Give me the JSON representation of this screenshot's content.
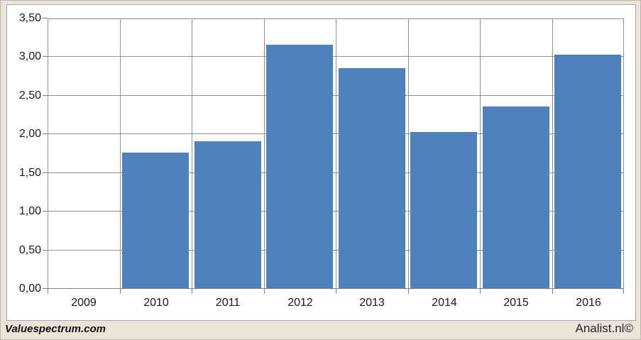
{
  "page": {
    "background_color": "#E9E6D9"
  },
  "footer": {
    "left_text": "Valuespectrum.com",
    "right_text": "Analist.nl©"
  },
  "colors": {
    "bar": "#4F81BD",
    "gridline": "#8F8F8F",
    "axis": "#7F7F7F",
    "plot_background": "#FFFFFF",
    "frame_border": "#A6A6A6",
    "text": "#1A1A1A"
  },
  "chart_data": {
    "type": "bar",
    "title": "",
    "xlabel": "",
    "ylabel": "",
    "categories": [
      "2009",
      "2010",
      "2011",
      "2012",
      "2013",
      "2014",
      "2015",
      "2016"
    ],
    "values": [
      0,
      1.75,
      1.9,
      3.15,
      2.85,
      2.02,
      2.35,
      3.02
    ],
    "ylim": [
      0,
      3.5
    ],
    "y_tick_step": 0.5,
    "y_tick_labels": [
      "0,00",
      "0,50",
      "1,00",
      "1,50",
      "2,00",
      "2,50",
      "3,00",
      "3,50"
    ],
    "decimal_separator": ",",
    "grid": true,
    "legend_position": "none",
    "bar_color": "#4F81BD"
  }
}
